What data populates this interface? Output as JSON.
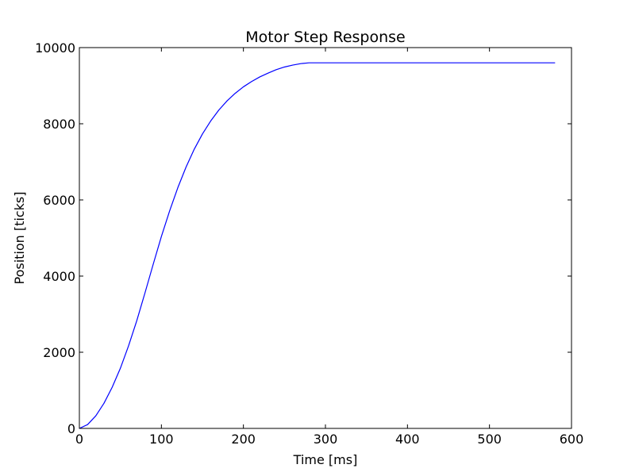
{
  "chart_data": {
    "type": "line",
    "title": "Motor Step Response",
    "xlabel": "Time [ms]",
    "ylabel": "Position [ticks]",
    "xlim": [
      0,
      600
    ],
    "ylim": [
      0,
      10000
    ],
    "xticks": [
      0,
      100,
      200,
      300,
      400,
      500,
      600
    ],
    "yticks": [
      0,
      2000,
      4000,
      6000,
      8000,
      10000
    ],
    "xtick_labels": [
      "0",
      "100",
      "200",
      "300",
      "400",
      "500",
      "600"
    ],
    "ytick_labels": [
      "0",
      "2000",
      "4000",
      "6000",
      "8000",
      "10000"
    ],
    "grid": false,
    "colors": {
      "line": "#0000ff",
      "axes": "#000000",
      "background": "#ffffff"
    },
    "series": [
      {
        "x": [
          0,
          10,
          20,
          30,
          40,
          50,
          60,
          70,
          80,
          90,
          100,
          110,
          120,
          130,
          140,
          150,
          160,
          170,
          180,
          190,
          200,
          210,
          220,
          230,
          240,
          250,
          260,
          270,
          280,
          290,
          300,
          350,
          400,
          450,
          500,
          550,
          580
        ],
        "y": [
          0,
          100,
          330,
          660,
          1080,
          1580,
          2170,
          2830,
          3560,
          4310,
          5040,
          5710,
          6320,
          6860,
          7330,
          7730,
          8070,
          8360,
          8600,
          8800,
          8970,
          9110,
          9230,
          9330,
          9420,
          9490,
          9540,
          9580,
          9600,
          9600,
          9600,
          9600,
          9600,
          9600,
          9600,
          9600,
          9600
        ]
      }
    ]
  }
}
